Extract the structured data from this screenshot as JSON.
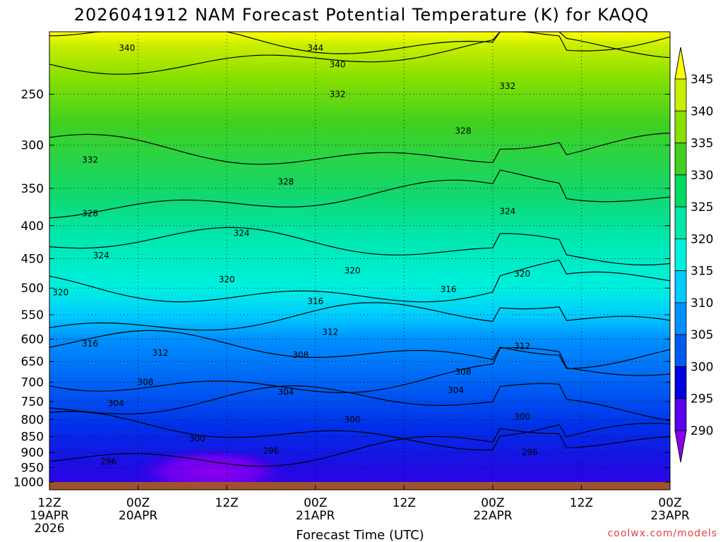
{
  "title": "2026041912 NAM Forecast Potential Temperature (K) for KAQQ",
  "credit": "coolwx.com/models",
  "chart_data": {
    "type": "heatmap",
    "title": "2026041912 NAM Forecast Potential Temperature (K) for KAQQ",
    "xlabel": "Forecast Time (UTC)",
    "ylabel": "",
    "y_scale": "pressure (hPa), inverted",
    "y_range": [
      1000,
      200
    ],
    "x_range_hours": [
      0,
      84
    ],
    "y_ticks": [
      "250",
      "300",
      "350",
      "400",
      "450",
      "500",
      "550",
      "600",
      "650",
      "700",
      "750",
      "800",
      "850",
      "900",
      "950",
      "1000"
    ],
    "x_ticks": [
      {
        "time": "12Z",
        "date": "19APR",
        "year": "2026"
      },
      {
        "time": "00Z",
        "date": "20APR",
        "year": ""
      },
      {
        "time": "12Z",
        "date": "",
        "year": ""
      },
      {
        "time": "00Z",
        "date": "21APR",
        "year": ""
      },
      {
        "time": "12Z",
        "date": "",
        "year": ""
      },
      {
        "time": "00Z",
        "date": "22APR",
        "year": ""
      },
      {
        "time": "12Z",
        "date": "",
        "year": ""
      },
      {
        "time": "00Z",
        "date": "23APR",
        "year": ""
      }
    ],
    "colorbar": {
      "ticks": [
        "345",
        "340",
        "335",
        "330",
        "325",
        "320",
        "315",
        "310",
        "305",
        "300",
        "295",
        "290"
      ],
      "colors": [
        "#ffff00",
        "#c8ee00",
        "#88e000",
        "#40d020",
        "#00dc60",
        "#00e8a8",
        "#00f0e0",
        "#00ccff",
        "#0090ff",
        "#005cf0",
        "#0000e0",
        "#5a00ee",
        "#8a00f0"
      ]
    },
    "contour_levels": [
      296,
      300,
      304,
      308,
      312,
      316,
      320,
      324,
      328,
      332,
      340,
      344
    ],
    "contour_labels": [
      {
        "text": "340",
        "hour": 10.5,
        "p": 212
      },
      {
        "text": "344",
        "hour": 36,
        "p": 212
      },
      {
        "text": "340",
        "hour": 39,
        "p": 225
      },
      {
        "text": "332",
        "hour": 39,
        "p": 250
      },
      {
        "text": "332",
        "hour": 62,
        "p": 243
      },
      {
        "text": "328",
        "hour": 56,
        "p": 285
      },
      {
        "text": "332",
        "hour": 5.5,
        "p": 316
      },
      {
        "text": "328",
        "hour": 32,
        "p": 342
      },
      {
        "text": "328",
        "hour": 5.5,
        "p": 383
      },
      {
        "text": "324",
        "hour": 62,
        "p": 380
      },
      {
        "text": "324",
        "hour": 26,
        "p": 411
      },
      {
        "text": "324",
        "hour": 7,
        "p": 445
      },
      {
        "text": "320",
        "hour": 41,
        "p": 470
      },
      {
        "text": "320",
        "hour": 24,
        "p": 485
      },
      {
        "text": "320",
        "hour": 64,
        "p": 475
      },
      {
        "text": "320",
        "hour": 1.5,
        "p": 508
      },
      {
        "text": "316",
        "hour": 54,
        "p": 502
      },
      {
        "text": "316",
        "hour": 36,
        "p": 524
      },
      {
        "text": "312",
        "hour": 38,
        "p": 585
      },
      {
        "text": "316",
        "hour": 5.5,
        "p": 610
      },
      {
        "text": "312",
        "hour": 64,
        "p": 615
      },
      {
        "text": "312",
        "hour": 15,
        "p": 630
      },
      {
        "text": "308",
        "hour": 34,
        "p": 635
      },
      {
        "text": "308",
        "hour": 56,
        "p": 675
      },
      {
        "text": "308",
        "hour": 13,
        "p": 700
      },
      {
        "text": "304",
        "hour": 32,
        "p": 725
      },
      {
        "text": "304",
        "hour": 55,
        "p": 720
      },
      {
        "text": "304",
        "hour": 9,
        "p": 755
      },
      {
        "text": "300",
        "hour": 41,
        "p": 800
      },
      {
        "text": "300",
        "hour": 64,
        "p": 792
      },
      {
        "text": "300",
        "hour": 20,
        "p": 856
      },
      {
        "text": "296",
        "hour": 30,
        "p": 895
      },
      {
        "text": "296",
        "hour": 8,
        "p": 930
      },
      {
        "text": "296",
        "hour": 65,
        "p": 900
      }
    ]
  }
}
